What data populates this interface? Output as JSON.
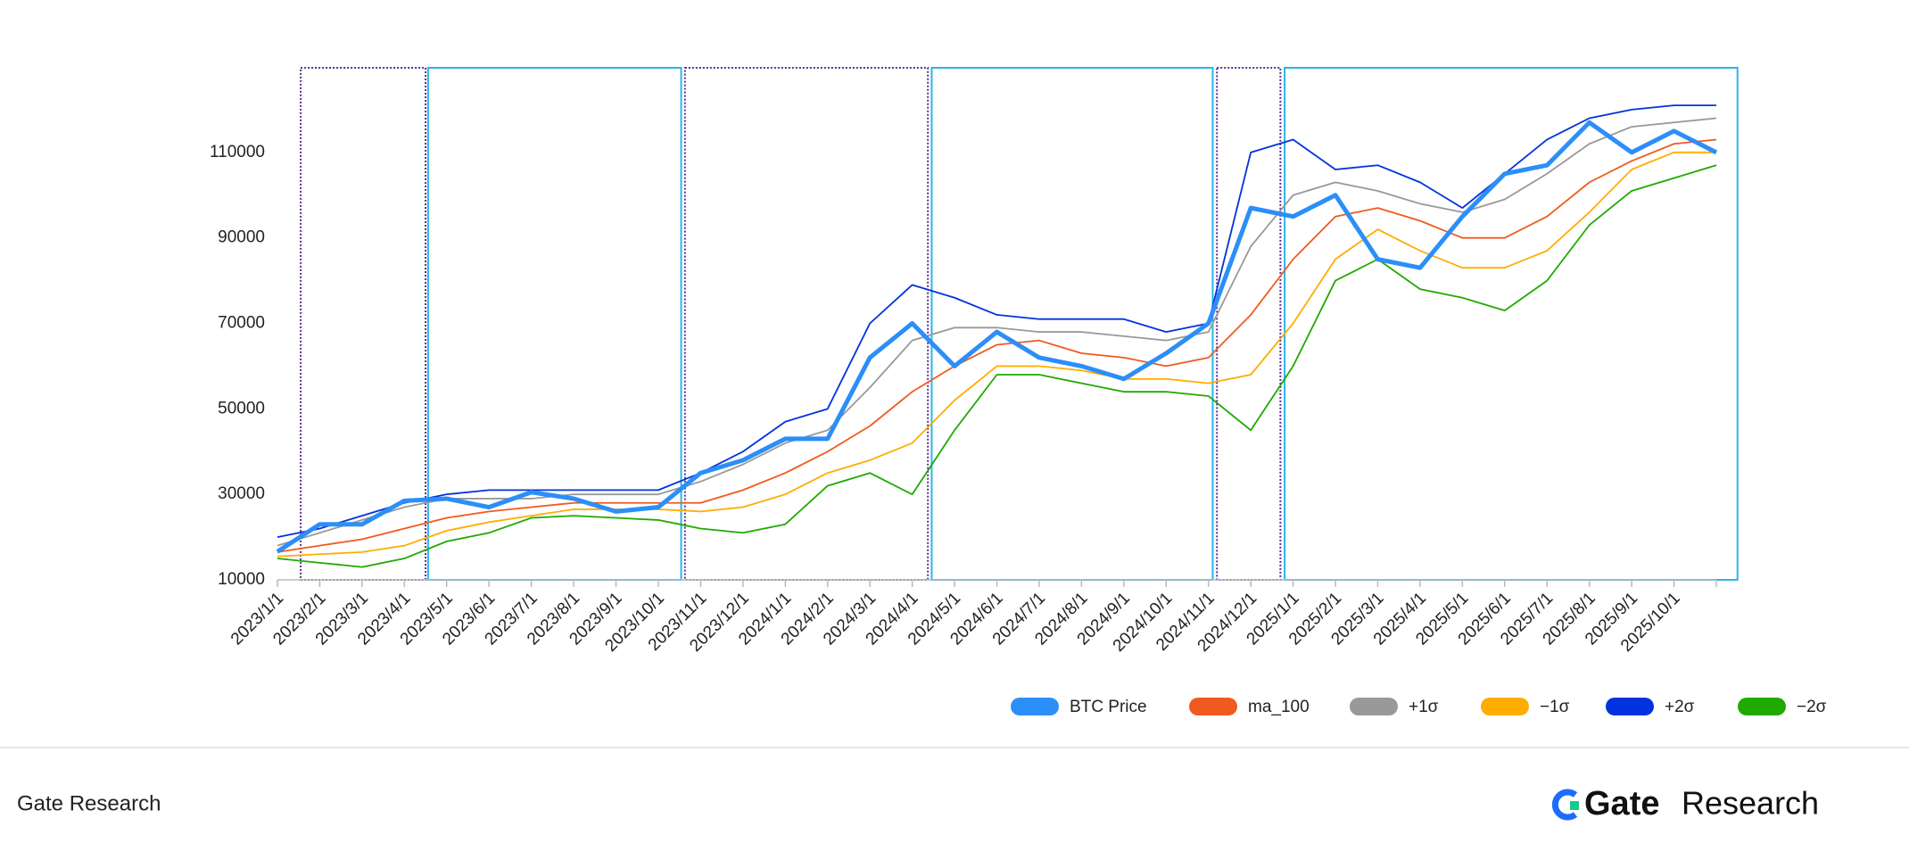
{
  "chart_data": {
    "type": "line",
    "categories": [
      "2023/1/1",
      "2023/2/1",
      "2023/3/1",
      "2023/4/1",
      "2023/5/1",
      "2023/6/1",
      "2023/7/1",
      "2023/8/1",
      "2023/9/1",
      "2023/10/1",
      "2023/11/1",
      "2023/12/1",
      "2024/1/1",
      "2024/2/1",
      "2024/3/1",
      "2024/4/1",
      "2024/5/1",
      "2024/6/1",
      "2024/7/1",
      "2024/8/1",
      "2024/9/1",
      "2024/10/1",
      "2024/11/1",
      "2024/12/1",
      "2025/1/1",
      "2025/2/1",
      "2025/3/1",
      "2025/4/1",
      "2025/5/1",
      "2025/6/1",
      "2025/7/1",
      "2025/8/1",
      "2025/9/1",
      "2025/10/1",
      null
    ],
    "series": [
      {
        "name": "−2σ",
        "color": "#1faa00",
        "values": [
          15000,
          14000,
          13000,
          15000,
          19000,
          21000,
          24500,
          25000,
          24500,
          24000,
          22000,
          21000,
          23000,
          32000,
          35000,
          30000,
          45000,
          58000,
          58000,
          56000,
          54000,
          54000,
          53000,
          45000,
          60000,
          80000,
          85000,
          78000,
          76000,
          73000,
          80000,
          93000,
          101000,
          104000,
          107000
        ]
      },
      {
        "name": "+2σ",
        "color": "#0033dd",
        "values": [
          20000,
          22000,
          25000,
          28000,
          30000,
          31000,
          31000,
          31000,
          31000,
          31000,
          35000,
          40000,
          47000,
          50000,
          70000,
          79000,
          76000,
          72000,
          71000,
          71000,
          71000,
          68000,
          70000,
          110000,
          113000,
          106000,
          107000,
          103000,
          97000,
          105000,
          113000,
          118000,
          120000,
          121000,
          121000
        ]
      },
      {
        "name": "−1σ",
        "color": "#ffad00",
        "values": [
          15500,
          16000,
          16500,
          18000,
          21500,
          23500,
          25000,
          26500,
          26500,
          26500,
          26000,
          27000,
          30000,
          35000,
          38000,
          42000,
          52000,
          60000,
          60000,
          59000,
          57000,
          57000,
          56000,
          58000,
          70000,
          85000,
          92000,
          87000,
          83000,
          83000,
          87000,
          96000,
          106000,
          110000,
          110000
        ]
      },
      {
        "name": "+1σ",
        "color": "#999999",
        "values": [
          18000,
          21000,
          24000,
          27000,
          29000,
          29000,
          29000,
          30000,
          30000,
          30000,
          33000,
          37000,
          42000,
          45000,
          55000,
          66000,
          69000,
          69000,
          68000,
          68000,
          67000,
          66000,
          68000,
          88000,
          100000,
          103000,
          101000,
          98000,
          96000,
          99000,
          105000,
          112000,
          116000,
          117000,
          118000
        ]
      },
      {
        "name": "ma_100",
        "color": "#f05a1e",
        "values": [
          16500,
          18000,
          19500,
          22000,
          24500,
          26000,
          27000,
          28000,
          28000,
          28000,
          28000,
          31000,
          35000,
          40000,
          46000,
          54000,
          60000,
          65000,
          66000,
          63000,
          62000,
          60000,
          62000,
          72000,
          85000,
          95000,
          97000,
          94000,
          90000,
          90000,
          95000,
          103000,
          108000,
          112000,
          113000
        ]
      },
      {
        "name": "BTC Price",
        "color": "#2c8ef8",
        "values": [
          16600,
          23000,
          23000,
          28500,
          29000,
          27000,
          30500,
          29000,
          26000,
          27000,
          35000,
          38000,
          43000,
          43000,
          62000,
          70000,
          60000,
          68000,
          62000,
          60000,
          57000,
          63000,
          70000,
          97000,
          95000,
          100000,
          85000,
          83000,
          95000,
          105000,
          107000,
          117000,
          110000,
          115000,
          110000
        ]
      }
    ],
    "ylim": [
      10000,
      130000
    ],
    "yticks": [
      10000,
      30000,
      50000,
      70000,
      90000,
      110000
    ],
    "grid": false
  },
  "footer": {
    "left": "Gate Research",
    "brand": "Gate",
    "brand_suffix": "Research"
  }
}
